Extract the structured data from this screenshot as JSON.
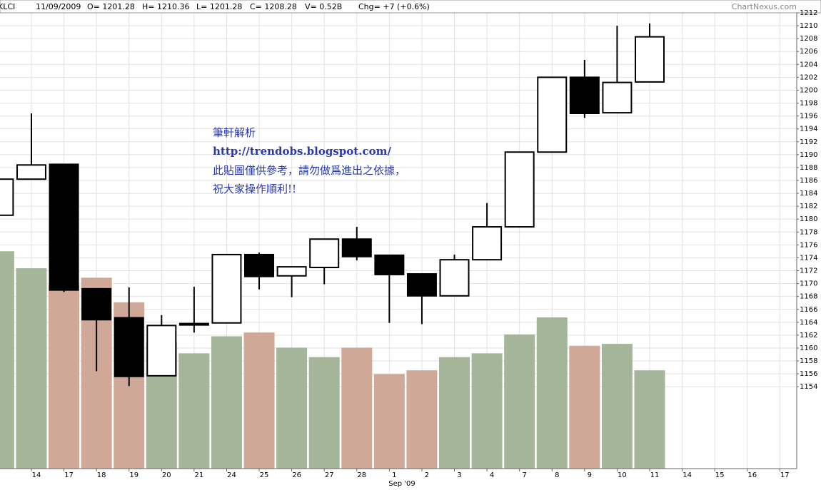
{
  "chart_data": {
    "type": "candlestick",
    "header": {
      "symbol": "KLCI",
      "date": "11/09/2009",
      "open": "O= 1201.28",
      "high": "H= 1210.36",
      "low": "L= 1201.28",
      "close": "C= 1208.28",
      "volume": "V= 0.52B",
      "change": "Chg= +7 (+0.6%)",
      "source": "ChartNexus.com"
    },
    "annotations": [
      "筆軒解析",
      "http://trendobs.blogspot.com/",
      "此貼圖僅供參考，請勿做爲進出之依據，",
      "祝大家操作順利!!"
    ],
    "x_sublabel": "Sep '09",
    "categories": [
      null,
      "14",
      "17",
      "18",
      "19",
      "20",
      "21",
      "24",
      "25",
      "26",
      "27",
      "28",
      "1",
      "2",
      "3",
      "4",
      "7",
      "8",
      "9",
      "10",
      "11",
      "14",
      "15",
      "16",
      "17"
    ],
    "open": [
      1180.6,
      1186.2,
      1188.5,
      1169.2,
      1164.7,
      1155.7,
      1163.8,
      1163.9,
      1174.5,
      1171.2,
      1172.5,
      1176.9,
      1174.4,
      1171.5,
      1168.1,
      1173.7,
      1178.8,
      1190.4,
      1202.0,
      1196.5,
      1201.28,
      null,
      null,
      null,
      null
    ],
    "high": [
      1187.9,
      1196.4,
      1188.5,
      1169.2,
      1169.4,
      1165.1,
      1169.5,
      1174.5,
      1174.8,
      1172.6,
      1176.9,
      1178.8,
      1174.4,
      1171.5,
      1174.5,
      1182.5,
      1190.4,
      1202.0,
      1204.7,
      1210.0,
      1210.36,
      null,
      null,
      null,
      null
    ],
    "low": [
      1180.6,
      1186.2,
      1168.7,
      1156.4,
      1154.1,
      1155.7,
      1162.4,
      1163.9,
      1169.1,
      1167.9,
      1169.9,
      1173.6,
      1163.9,
      1163.7,
      1168.1,
      1173.7,
      1178.8,
      1190.4,
      1195.7,
      1196.5,
      1201.28,
      null,
      null,
      null,
      null
    ],
    "close": [
      1186.2,
      1188.4,
      1169.0,
      1164.4,
      1155.6,
      1163.5,
      1163.6,
      1174.5,
      1171.1,
      1172.6,
      1176.9,
      1174.2,
      1171.4,
      1168.1,
      1173.7,
      1178.8,
      1190.4,
      1202.0,
      1196.4,
      1201.2,
      1208.28,
      null,
      null,
      null,
      null
    ],
    "volume": [
      1.15,
      1.06,
      0.97,
      1.01,
      0.88,
      0.67,
      0.61,
      0.7,
      0.72,
      0.64,
      0.59,
      0.64,
      0.5,
      0.52,
      0.59,
      0.61,
      0.71,
      0.8,
      0.65,
      0.66,
      0.52,
      null,
      null,
      null,
      null
    ],
    "up_color": "#ffffff",
    "down_color": "#000000",
    "volume_up_color": "#a5b59a",
    "volume_down_color": "#cfa898",
    "ylim": [
      1141.3,
      1212
    ],
    "yticks": [
      1154,
      1156,
      1158,
      1160,
      1162,
      1164,
      1166,
      1168,
      1170,
      1172,
      1174,
      1176,
      1178,
      1180,
      1182,
      1184,
      1186,
      1188,
      1190,
      1192,
      1194,
      1196,
      1198,
      1200,
      1202,
      1204,
      1206,
      1208,
      1210,
      1212
    ],
    "grid": true
  }
}
